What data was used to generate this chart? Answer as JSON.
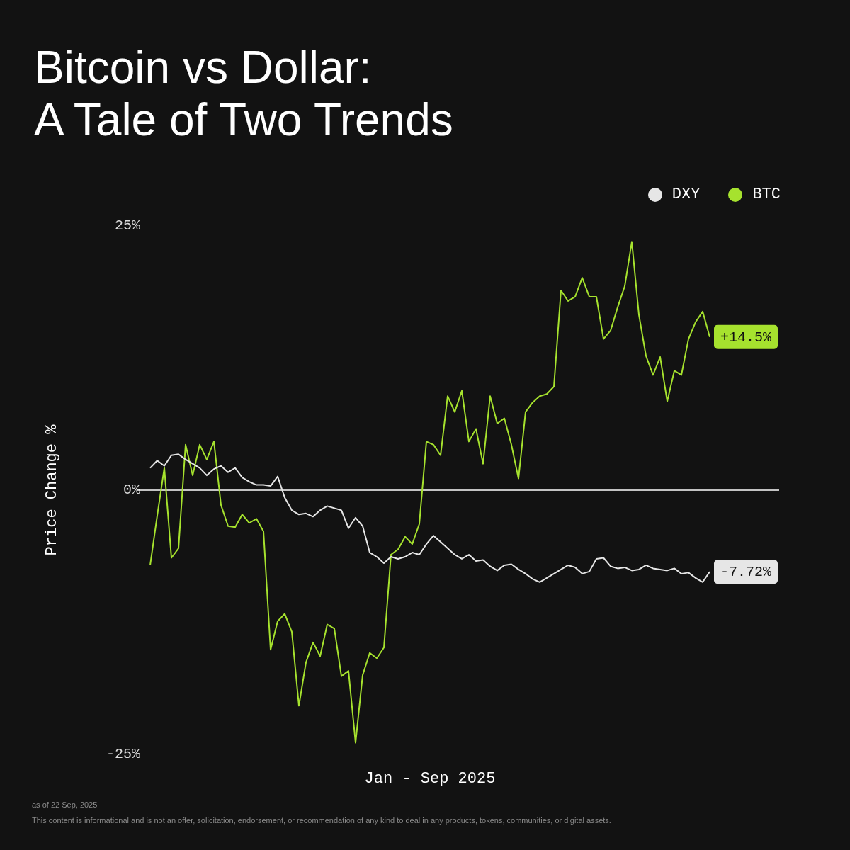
{
  "chart_data": {
    "type": "line",
    "title": "Bitcoin vs Dollar:\nA Tale of Two Trends",
    "xlabel": "Jan - Sep 2025",
    "ylabel": "Price Change %",
    "categories": [
      null,
      null,
      null,
      null,
      null,
      null,
      null,
      null,
      null,
      null,
      null,
      null,
      null,
      null,
      null,
      null,
      null,
      null,
      null,
      null,
      null,
      null,
      null,
      null,
      null,
      null,
      null,
      null,
      null,
      null,
      null,
      null,
      null,
      null,
      null,
      null,
      null,
      null,
      null,
      null,
      null,
      null,
      null,
      null,
      null,
      null,
      null,
      null,
      null,
      null,
      null,
      null,
      null,
      null,
      null,
      null,
      null,
      null,
      null,
      null,
      null,
      null,
      null,
      null,
      null,
      null,
      null,
      null,
      null,
      null,
      null,
      null,
      null,
      null,
      null,
      null,
      null,
      null,
      null,
      null
    ],
    "series": [
      {
        "name": "DXY",
        "color": "#e6e6e6",
        "values": [
          2.1,
          2.8,
          2.3,
          3.3,
          3.4,
          2.9,
          2.5,
          2.1,
          1.4,
          2.0,
          2.3,
          1.7,
          2.1,
          1.2,
          0.8,
          0.5,
          0.5,
          0.4,
          1.3,
          -0.7,
          -1.9,
          -2.3,
          -2.2,
          -2.5,
          -1.9,
          -1.5,
          -1.7,
          -1.9,
          -3.6,
          -2.6,
          -3.4,
          -5.9,
          -6.3,
          -6.9,
          -6.3,
          -6.5,
          -6.3,
          -5.9,
          -6.1,
          -5.1,
          -4.3,
          -4.9,
          -5.5,
          -6.1,
          -6.5,
          -6.1,
          -6.7,
          -6.6,
          -7.2,
          -7.6,
          -7.1,
          -7.0,
          -7.5,
          -7.9,
          -8.4,
          -8.7,
          -8.3,
          -7.9,
          -7.5,
          -7.1,
          -7.3,
          -7.9,
          -7.7,
          -6.5,
          -6.4,
          -7.2,
          -7.4,
          -7.3,
          -7.6,
          -7.5,
          -7.1,
          -7.4,
          -7.5,
          -7.6,
          -7.4,
          -7.9,
          -7.8,
          -8.3,
          -8.7,
          -7.72
        ],
        "value_labels": [
          null,
          null,
          null,
          null,
          null,
          null,
          null,
          null,
          null,
          null,
          null,
          null,
          null,
          null,
          null,
          null,
          null,
          null,
          null,
          null,
          null,
          null,
          null,
          null,
          null,
          null,
          null,
          null,
          null,
          null,
          null,
          null,
          null,
          null,
          null,
          null,
          null,
          null,
          null,
          null,
          null,
          null,
          null,
          null,
          null,
          null,
          null,
          null,
          null,
          null,
          null,
          null,
          null,
          null,
          null,
          null,
          null,
          null,
          null,
          null,
          null,
          null,
          null,
          null,
          null,
          null,
          null,
          null,
          null,
          null,
          null,
          null,
          null,
          null,
          null,
          null,
          null,
          null,
          null,
          "-7.72%"
        ]
      },
      {
        "name": "BTC",
        "color": "#a6e22e",
        "values": [
          -7.1,
          -2.4,
          2.1,
          -6.4,
          -5.5,
          4.3,
          1.4,
          4.3,
          2.9,
          4.6,
          -1.4,
          -3.4,
          -3.5,
          -2.3,
          -3.1,
          -2.7,
          -3.9,
          -15.1,
          -12.4,
          -11.7,
          -13.4,
          -20.4,
          -16.3,
          -14.4,
          -15.7,
          -12.7,
          -13.1,
          -17.6,
          -17.1,
          -23.9,
          -17.5,
          -15.4,
          -15.9,
          -14.9,
          -6.1,
          -5.6,
          -4.4,
          -5.1,
          -3.2,
          4.6,
          4.3,
          3.3,
          8.9,
          7.4,
          9.4,
          4.6,
          5.8,
          2.5,
          8.9,
          6.3,
          6.8,
          4.3,
          1.1,
          7.4,
          8.3,
          8.9,
          9.1,
          9.8,
          18.9,
          17.9,
          18.3,
          20.1,
          18.3,
          18.3,
          14.3,
          15.1,
          17.3,
          19.3,
          23.5,
          16.6,
          12.7,
          10.9,
          12.6,
          8.4,
          11.3,
          10.9,
          14.3,
          15.9,
          16.9,
          14.5
        ],
        "value_labels": [
          null,
          null,
          null,
          null,
          null,
          null,
          null,
          null,
          null,
          null,
          null,
          null,
          null,
          null,
          null,
          null,
          null,
          null,
          null,
          null,
          null,
          null,
          null,
          null,
          null,
          null,
          null,
          null,
          null,
          null,
          null,
          null,
          null,
          null,
          null,
          null,
          null,
          null,
          null,
          null,
          null,
          null,
          null,
          null,
          null,
          null,
          null,
          null,
          null,
          null,
          null,
          null,
          null,
          null,
          null,
          null,
          null,
          null,
          null,
          null,
          null,
          null,
          null,
          null,
          null,
          null,
          null,
          null,
          null,
          null,
          null,
          null,
          null,
          null,
          null,
          null,
          null,
          null,
          null,
          "+14.5%"
        ]
      }
    ],
    "ylim": [
      -25,
      25
    ],
    "yticks": [
      {
        "value": -25,
        "label": "-25%"
      },
      {
        "value": 0,
        "label": "0%"
      },
      {
        "value": 25,
        "label": "25%"
      }
    ],
    "ref_lines": [
      {
        "axis": "y",
        "value": 0,
        "color": "#ffffff"
      }
    ],
    "grid": false,
    "legend": "top right",
    "annotations": [
      "as of 22 Sep, 2025",
      "This content is informational and is not an offer, solicitation, endorsement, or recommendation of any kind to deal in any products, tokens, communities, or digital assets."
    ]
  }
}
